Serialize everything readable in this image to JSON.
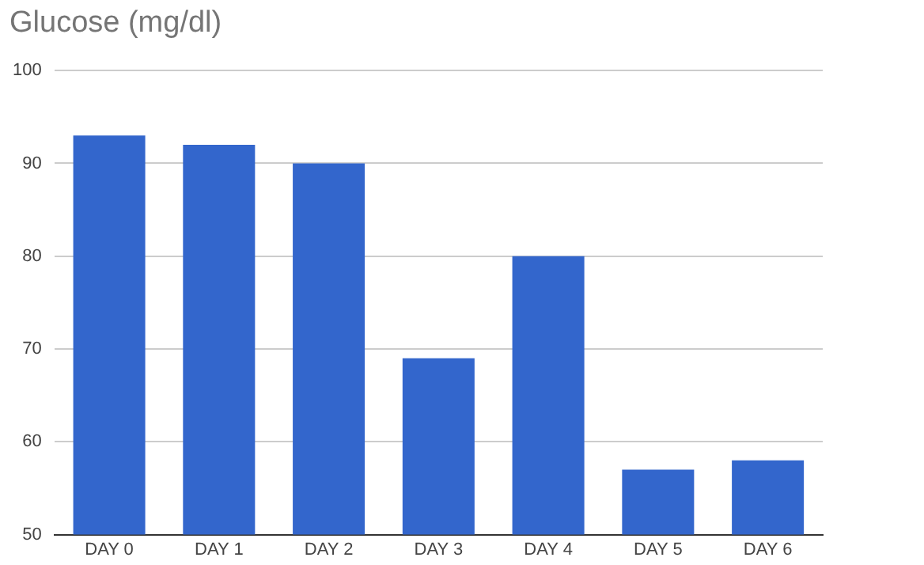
{
  "chart_data": {
    "type": "bar",
    "title": "Glucose (mg/dl)",
    "categories": [
      "DAY 0",
      "DAY 1",
      "DAY 2",
      "DAY 3",
      "DAY 4",
      "DAY 5",
      "DAY 6"
    ],
    "values": [
      93,
      92,
      90,
      69,
      80,
      57,
      58
    ],
    "color": "#3366cc",
    "ylim": [
      50,
      100
    ],
    "yticks": [
      50,
      60,
      70,
      80,
      90,
      100
    ],
    "grid": "y"
  }
}
